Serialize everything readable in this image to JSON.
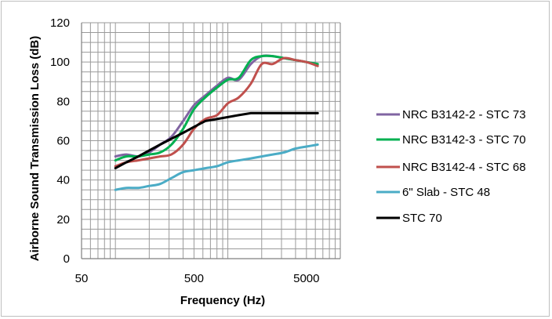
{
  "chart_data": {
    "type": "line",
    "xlabel": "Frequency (Hz)",
    "ylabel": "Airborne Sound Transmission Loss  (dB)",
    "x_scale": "log",
    "xlim": [
      50,
      10000
    ],
    "ylim": [
      0,
      120
    ],
    "x_ticks": [
      50,
      500,
      5000
    ],
    "x_tick_labels": [
      "50",
      "500",
      "5000"
    ],
    "y_ticks": [
      0,
      20,
      40,
      60,
      80,
      100,
      120
    ],
    "y_tick_labels": [
      "0",
      "20",
      "40",
      "60",
      "80",
      "100",
      "120"
    ],
    "grid": "major and minor (log) gridlines",
    "legend_position": "right",
    "x": [
      100,
      125,
      160,
      200,
      250,
      315,
      400,
      500,
      630,
      800,
      1000,
      1250,
      1600,
      2000,
      2500,
      3150,
      4000,
      5000,
      6300
    ],
    "series": [
      {
        "name": "NRC B3142-2 - STC 73",
        "color": "#8064a2",
        "values": [
          52,
          53,
          52,
          54,
          58,
          62,
          70,
          78,
          83,
          88,
          92,
          91,
          99,
          103,
          103,
          102,
          101,
          100,
          99
        ]
      },
      {
        "name": "NRC B3142-3 - STC 70",
        "color": "#00b050",
        "values": [
          50,
          52,
          52,
          53,
          54,
          58,
          66,
          76,
          82,
          87,
          91,
          92,
          101,
          103,
          103,
          102,
          101,
          100,
          99
        ]
      },
      {
        "name": "NRC B3142-4 - STC 68",
        "color": "#c0504d",
        "values": [
          47,
          49,
          50,
          51,
          52,
          53,
          58,
          66,
          71,
          73,
          79,
          82,
          89,
          99,
          99,
          102,
          101,
          100,
          98
        ]
      },
      {
        "name": "6\" Slab - STC 48",
        "color": "#4bacc6",
        "values": [
          35,
          36,
          36,
          37,
          38,
          41,
          44,
          45,
          46,
          47,
          49,
          50,
          51,
          52,
          53,
          54,
          56,
          57,
          58
        ]
      },
      {
        "name": "STC 70",
        "color": "#000000",
        "values": [
          46,
          49,
          52,
          55,
          58,
          61,
          64,
          67,
          70,
          71,
          72,
          73,
          74,
          74,
          74,
          74,
          74,
          74,
          74
        ]
      }
    ]
  }
}
